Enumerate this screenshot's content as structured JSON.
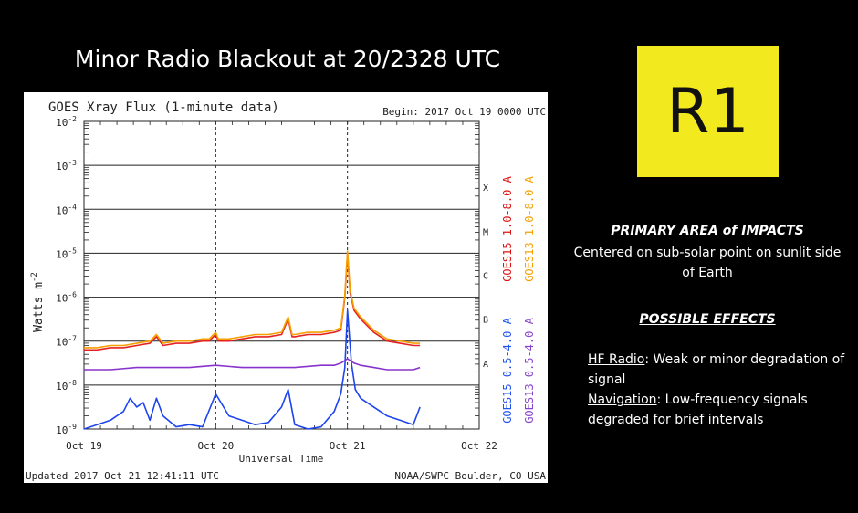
{
  "slide": {
    "title": "Minor Radio Blackout at 20/2328 UTC",
    "badge": "R1",
    "primary_heading": "PRIMARY AREA of IMPACTS",
    "primary_text": "Centered on sub-solar point on sunlit side of Earth",
    "effects_heading": "POSSIBLE EFFECTS",
    "effects": [
      {
        "label": "HF Radio",
        "text": ": Weak or minor degradation of signal"
      },
      {
        "label": "Navigation",
        "text": ": Low-frequency signals degraded for brief intervals"
      }
    ]
  },
  "chart_data": {
    "type": "line",
    "title": "GOES Xray Flux (1-minute data)",
    "begin_label": "Begin:  2017 Oct 19 0000 UTC",
    "footer_left": "Updated 2017 Oct 21 12:41:11 UTC",
    "footer_right": "NOAA/SWPC Boulder, CO USA",
    "xlabel": "Universal Time",
    "ylabel": "Watts m",
    "ylabel_sup": "-2",
    "yscale": "log",
    "ylim_exp": [
      -9,
      -2
    ],
    "grid": true,
    "xlim_days": [
      0,
      3
    ],
    "x_ticks": [
      {
        "day": 0,
        "label": "Oct 19"
      },
      {
        "day": 1,
        "label": "Oct 20"
      },
      {
        "day": 2,
        "label": "Oct 21"
      },
      {
        "day": 3,
        "label": "Oct 22"
      }
    ],
    "y_ticks": [
      {
        "exp": -2,
        "label": "10",
        "sup": "-2"
      },
      {
        "exp": -3,
        "label": "10",
        "sup": "-3"
      },
      {
        "exp": -4,
        "label": "10",
        "sup": "-4"
      },
      {
        "exp": -5,
        "label": "10",
        "sup": "-5"
      },
      {
        "exp": -6,
        "label": "10",
        "sup": "-6"
      },
      {
        "exp": -7,
        "label": "10",
        "sup": "-7"
      },
      {
        "exp": -8,
        "label": "10",
        "sup": "-8"
      },
      {
        "exp": -9,
        "label": "10",
        "sup": "-9"
      }
    ],
    "class_labels": [
      {
        "label": "X",
        "exp": -3.5
      },
      {
        "label": "M",
        "exp": -4.5
      },
      {
        "label": "C",
        "exp": -5.5
      },
      {
        "label": "B",
        "exp": -6.5
      },
      {
        "label": "A",
        "exp": -7.5
      }
    ],
    "legend": [
      {
        "text": "GOES15 1.0-8.0 A",
        "color": "#dd1111",
        "col": 0,
        "pos": "upper"
      },
      {
        "text": "GOES13 1.0-8.0 A",
        "color": "#f5a000",
        "col": 1,
        "pos": "upper"
      },
      {
        "text": "GOES15 0.5-4.0 A",
        "color": "#2255ee",
        "col": 0,
        "pos": "lower"
      },
      {
        "text": "GOES13 0.5-4.0 A",
        "color": "#8844cc",
        "col": 1,
        "pos": "lower"
      }
    ],
    "series": [
      {
        "name": "GOES15 1.0-8.0 A",
        "color": "#e52222",
        "x_days": [
          0,
          0.1,
          0.2,
          0.3,
          0.4,
          0.5,
          0.55,
          0.6,
          0.7,
          0.8,
          0.9,
          0.95,
          1.0,
          1.02,
          1.1,
          1.2,
          1.3,
          1.4,
          1.5,
          1.55,
          1.58,
          1.6,
          1.7,
          1.8,
          1.9,
          1.95,
          1.98,
          2.0,
          2.02,
          2.05,
          2.1,
          2.2,
          2.3,
          2.4,
          2.5,
          2.55
        ],
        "y_exp": [
          -7.2,
          -7.2,
          -7.15,
          -7.15,
          -7.1,
          -7.05,
          -6.9,
          -7.1,
          -7.05,
          -7.05,
          -7.0,
          -7.0,
          -6.85,
          -7.0,
          -7.0,
          -6.95,
          -6.9,
          -6.9,
          -6.85,
          -6.5,
          -6.9,
          -6.9,
          -6.85,
          -6.85,
          -6.8,
          -6.75,
          -6.0,
          -5.0,
          -5.9,
          -6.3,
          -6.5,
          -6.8,
          -7.0,
          -7.05,
          -7.1,
          -7.1
        ]
      },
      {
        "name": "GOES13 1.0-8.0 A",
        "color": "#f5a000",
        "x_days": [
          0,
          0.1,
          0.2,
          0.3,
          0.4,
          0.5,
          0.55,
          0.6,
          0.7,
          0.8,
          0.9,
          0.95,
          1.0,
          1.02,
          1.1,
          1.2,
          1.3,
          1.4,
          1.5,
          1.55,
          1.58,
          1.6,
          1.7,
          1.8,
          1.9,
          1.95,
          1.98,
          2.0,
          2.02,
          2.05,
          2.1,
          2.2,
          2.3,
          2.4,
          2.5,
          2.55
        ],
        "y_exp": [
          -7.15,
          -7.15,
          -7.1,
          -7.1,
          -7.05,
          -7.0,
          -6.85,
          -7.05,
          -7.0,
          -7.0,
          -6.95,
          -6.95,
          -6.8,
          -6.95,
          -6.95,
          -6.9,
          -6.85,
          -6.85,
          -6.8,
          -6.45,
          -6.85,
          -6.85,
          -6.8,
          -6.8,
          -6.75,
          -6.7,
          -5.95,
          -4.95,
          -5.85,
          -6.25,
          -6.45,
          -6.75,
          -6.95,
          -7.0,
          -7.05,
          -7.05
        ]
      },
      {
        "name": "GOES15 0.5-4.0 A",
        "color": "#1e44ee",
        "x_days": [
          0,
          0.1,
          0.2,
          0.3,
          0.35,
          0.4,
          0.45,
          0.5,
          0.55,
          0.6,
          0.7,
          0.8,
          0.9,
          1.0,
          1.1,
          1.2,
          1.3,
          1.4,
          1.5,
          1.55,
          1.6,
          1.7,
          1.8,
          1.9,
          1.95,
          1.98,
          2.0,
          2.03,
          2.06,
          2.1,
          2.2,
          2.3,
          2.4,
          2.5,
          2.55
        ],
        "y_exp": [
          -9.0,
          -8.9,
          -8.8,
          -8.6,
          -8.3,
          -8.5,
          -8.4,
          -8.8,
          -8.3,
          -8.7,
          -8.95,
          -8.9,
          -8.95,
          -8.2,
          -8.7,
          -8.8,
          -8.9,
          -8.85,
          -8.5,
          -8.1,
          -8.9,
          -9.0,
          -8.95,
          -8.6,
          -8.2,
          -7.6,
          -6.3,
          -7.5,
          -8.1,
          -8.3,
          -8.5,
          -8.7,
          -8.8,
          -8.9,
          -8.5
        ]
      },
      {
        "name": "GOES13 0.5-4.0 A",
        "color": "#8833cc",
        "x_days": [
          0,
          0.2,
          0.4,
          0.6,
          0.8,
          1.0,
          1.2,
          1.4,
          1.6,
          1.8,
          1.9,
          1.95,
          2.0,
          2.05,
          2.1,
          2.2,
          2.3,
          2.4,
          2.5,
          2.55
        ],
        "y_exp": [
          -7.65,
          -7.65,
          -7.6,
          -7.6,
          -7.6,
          -7.55,
          -7.6,
          -7.6,
          -7.6,
          -7.55,
          -7.55,
          -7.5,
          -7.4,
          -7.5,
          -7.55,
          -7.6,
          -7.65,
          -7.65,
          -7.65,
          -7.6
        ]
      }
    ]
  }
}
